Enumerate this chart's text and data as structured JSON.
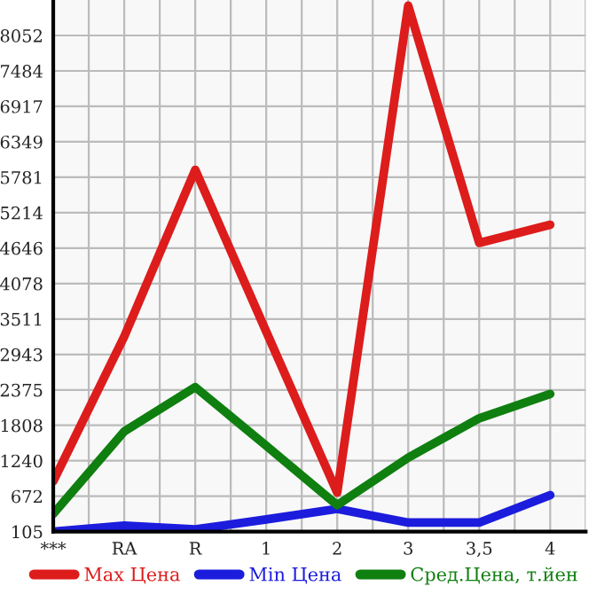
{
  "chart_data": {
    "type": "line",
    "categories": [
      "***",
      "RA",
      "R",
      "1",
      "2",
      "3",
      "3,5",
      "4"
    ],
    "series": [
      {
        "name": "Max Цена",
        "color": "#dd1c1c",
        "values": [
          910,
          3230,
          5900,
          3310,
          730,
          8530,
          4730,
          5020
        ]
      },
      {
        "name": "Min Цена",
        "color": "#1c1cdd",
        "values": [
          105,
          200,
          140,
          300,
          470,
          250,
          250,
          690
        ]
      },
      {
        "name": "Сред.Цена, т.йен",
        "color": "#0f7f0f",
        "values": [
          390,
          1710,
          2420,
          1480,
          530,
          1290,
          1920,
          2310
        ]
      }
    ],
    "ylim": [
      105,
      8620
    ],
    "yticks": [
      105,
      672,
      1240,
      1808,
      2375,
      2943,
      3511,
      4078,
      4646,
      5214,
      5781,
      6349,
      6917,
      7484,
      8052
    ],
    "grid": true,
    "legend": "bottom",
    "marker": "none",
    "line_style": "solid"
  }
}
